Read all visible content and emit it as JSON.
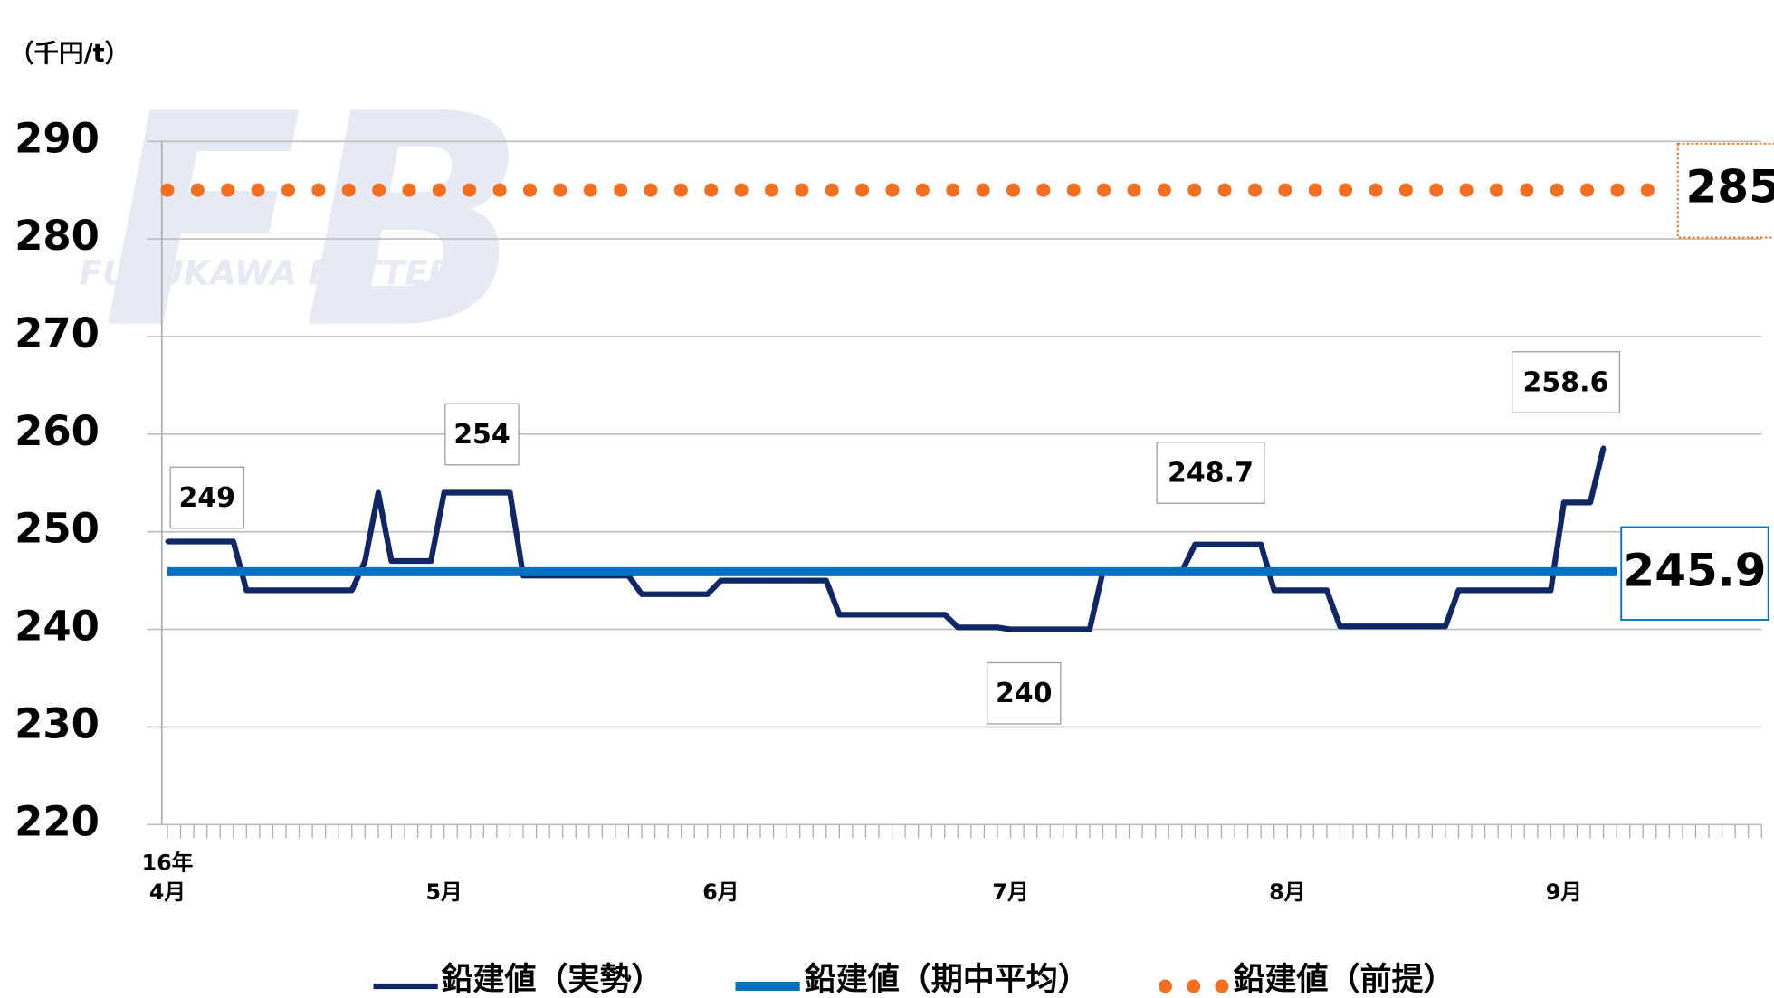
{
  "chart_data": {
    "type": "line",
    "logo": "FB",
    "watermark": "FURUKAWA BATTERY",
    "y_label": "（千円/t）",
    "x_year_label": "16年",
    "categories": [
      "4月",
      null,
      null,
      null,
      null,
      null,
      null,
      null,
      null,
      null,
      null,
      null,
      null,
      null,
      null,
      null,
      null,
      null,
      null,
      null,
      null,
      "5月",
      null,
      null,
      null,
      null,
      null,
      null,
      null,
      null,
      null,
      null,
      null,
      null,
      null,
      null,
      null,
      null,
      null,
      null,
      null,
      null,
      "6月",
      null,
      null,
      null,
      null,
      null,
      null,
      null,
      null,
      null,
      null,
      null,
      null,
      null,
      null,
      null,
      null,
      null,
      null,
      null,
      null,
      null,
      "7月",
      null,
      null,
      null,
      null,
      null,
      null,
      null,
      null,
      null,
      null,
      null,
      null,
      null,
      null,
      null,
      null,
      null,
      null,
      null,
      null,
      "8月",
      null,
      null,
      null,
      null,
      null,
      null,
      null,
      null,
      null,
      null,
      null,
      null,
      null,
      null,
      null,
      null,
      null,
      null,
      null,
      null,
      "9月",
      null,
      null,
      null,
      null,
      null,
      null,
      null,
      null,
      null,
      null,
      null,
      null,
      null,
      null,
      null
    ],
    "series": [
      {
        "name": "鉛建値（実勢）",
        "color": "#102765",
        "values": [
          249,
          249,
          249,
          249,
          249,
          249,
          244,
          244,
          244,
          244,
          244,
          244,
          244,
          244,
          244,
          247,
          254,
          247,
          247,
          247,
          247,
          254,
          254,
          254,
          254,
          254,
          254,
          245.5,
          245.5,
          245.5,
          245.5,
          245.5,
          245.5,
          245.5,
          245.5,
          245.5,
          243.6,
          243.6,
          243.6,
          243.6,
          243.6,
          243.6,
          245,
          245,
          245,
          245,
          245,
          245,
          245,
          245,
          245,
          241.5,
          241.5,
          241.5,
          241.5,
          241.5,
          241.5,
          241.5,
          241.5,
          241.5,
          240.2,
          240.2,
          240.2,
          240.2,
          240,
          240,
          240,
          240,
          240,
          240,
          240,
          245.9,
          245.9,
          245.9,
          245.9,
          245.9,
          245.9,
          245.9,
          248.7,
          248.7,
          248.7,
          248.7,
          248.7,
          248.7,
          244,
          244,
          244,
          244,
          244,
          240.3,
          240.3,
          240.3,
          240.3,
          240.3,
          240.3,
          240.3,
          240.3,
          240.3,
          244,
          244,
          244,
          244,
          244,
          244,
          244,
          244,
          253,
          253,
          253,
          258.6,
          null,
          null,
          null,
          null,
          null,
          null,
          null,
          null,
          null,
          null,
          null,
          null
        ]
      },
      {
        "name": "鉛建値（期中平均）",
        "color": "#0070c0",
        "values": [
          245.9,
          245.9,
          245.9,
          245.9,
          245.9,
          245.9,
          245.9,
          245.9,
          245.9,
          245.9,
          245.9,
          245.9,
          245.9,
          245.9,
          245.9,
          245.9,
          245.9,
          245.9,
          245.9,
          245.9,
          245.9,
          245.9,
          245.9,
          245.9,
          245.9,
          245.9,
          245.9,
          245.9,
          245.9,
          245.9,
          245.9,
          245.9,
          245.9,
          245.9,
          245.9,
          245.9,
          245.9,
          245.9,
          245.9,
          245.9,
          245.9,
          245.9,
          245.9,
          245.9,
          245.9,
          245.9,
          245.9,
          245.9,
          245.9,
          245.9,
          245.9,
          245.9,
          245.9,
          245.9,
          245.9,
          245.9,
          245.9,
          245.9,
          245.9,
          245.9,
          245.9,
          245.9,
          245.9,
          245.9,
          245.9,
          245.9,
          245.9,
          245.9,
          245.9,
          245.9,
          245.9,
          245.9,
          245.9,
          245.9,
          245.9,
          245.9,
          245.9,
          245.9,
          245.9,
          245.9,
          245.9,
          245.9,
          245.9,
          245.9,
          245.9,
          245.9,
          245.9,
          245.9,
          245.9,
          245.9,
          245.9,
          245.9,
          245.9,
          245.9,
          245.9,
          245.9,
          245.9,
          245.9,
          245.9,
          245.9,
          245.9,
          245.9,
          245.9,
          245.9,
          245.9,
          245.9,
          245.9,
          245.9,
          245.9,
          245.9,
          245.9,
          null,
          null,
          null,
          null,
          null,
          null,
          null,
          null,
          null,
          null,
          null
        ]
      },
      {
        "name": "鉛建値（前提）",
        "color": "#f36f1f",
        "values": [
          285,
          285,
          285,
          285,
          285,
          285,
          285,
          285,
          285,
          285,
          285,
          285,
          285,
          285,
          285,
          285,
          285,
          285,
          285,
          285,
          285,
          285,
          285,
          285,
          285,
          285,
          285,
          285,
          285,
          285,
          285,
          285,
          285,
          285,
          285,
          285,
          285,
          285,
          285,
          285,
          285,
          285,
          285,
          285,
          285,
          285,
          285,
          285,
          285,
          285,
          285,
          285,
          285,
          285,
          285,
          285,
          285,
          285,
          285,
          285,
          285,
          285,
          285,
          285,
          285,
          285,
          285,
          285,
          285,
          285,
          285,
          285,
          285,
          285,
          285,
          285,
          285,
          285,
          285,
          285,
          285,
          285,
          285,
          285,
          285,
          285,
          285,
          285,
          285,
          285,
          285,
          285,
          285,
          285,
          285,
          285,
          285,
          285,
          285,
          285,
          285,
          285,
          285,
          285,
          285,
          285,
          285,
          285,
          285,
          285,
          285,
          285,
          285,
          285,
          285,
          null,
          null,
          null,
          null,
          null,
          null,
          null
        ]
      }
    ],
    "ylim": [
      220,
      290
    ],
    "yticks": [
      220,
      230,
      240,
      250,
      260,
      270,
      280,
      290
    ],
    "grid": true
  }
}
